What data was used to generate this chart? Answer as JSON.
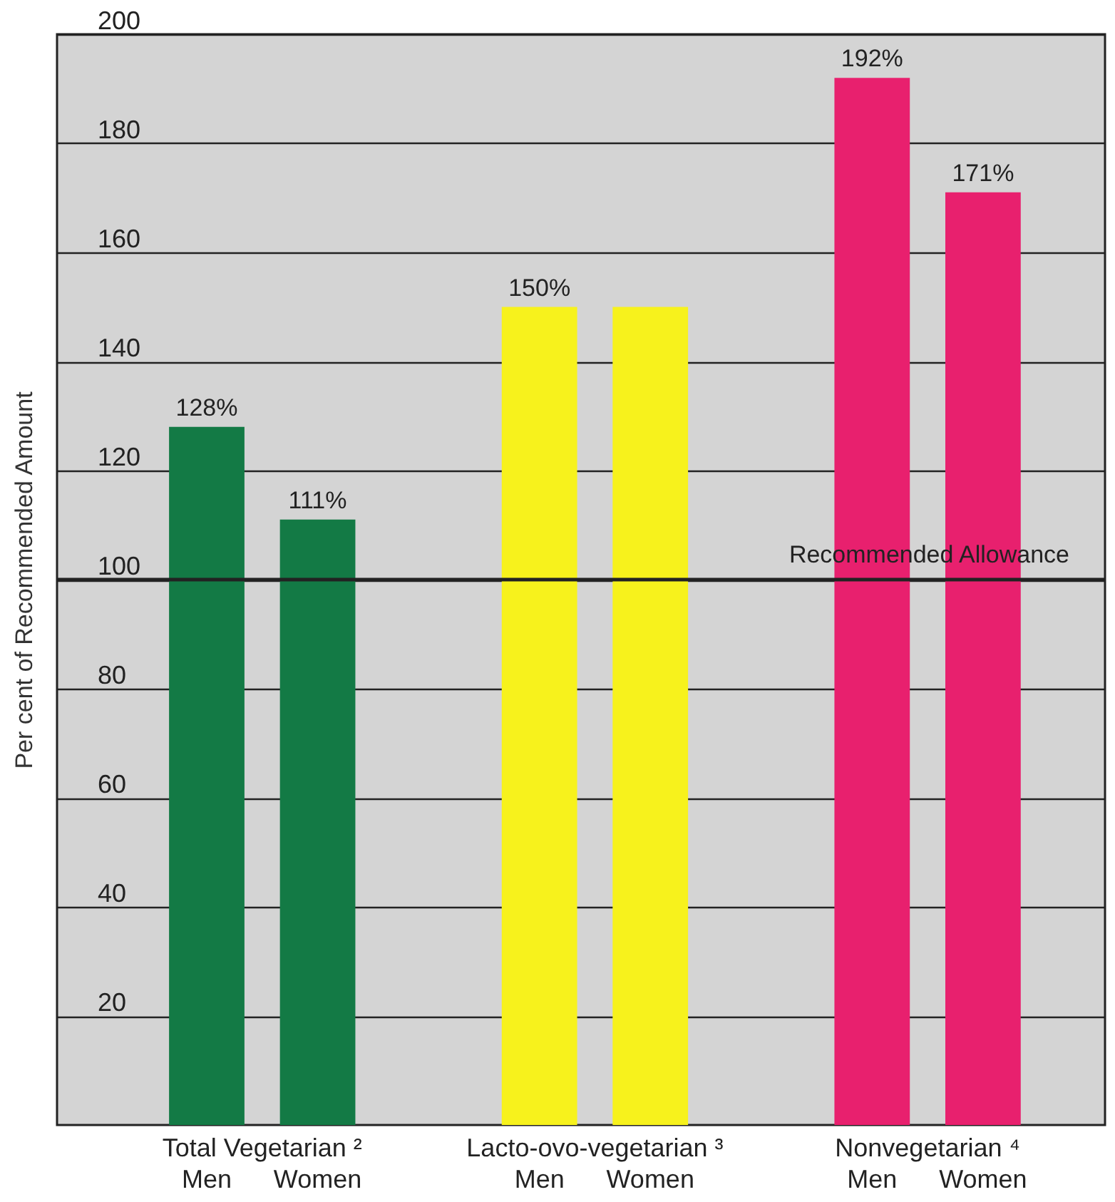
{
  "chart_data": {
    "type": "bar",
    "ylabel": "Per cent of Recommended Amount",
    "categories": [
      "Men",
      "Women",
      "Men",
      "Women",
      "Men",
      "Women"
    ],
    "values": [
      128,
      111,
      150,
      150,
      192,
      171
    ],
    "colors": [
      "#137a45",
      "#137a45",
      "#f7f21c",
      "#f7f21c",
      "#e8206e",
      "#e8206e"
    ],
    "value_labels": [
      "128%",
      "111%",
      "150%",
      null,
      "192%",
      "171%"
    ],
    "ylim": [
      0,
      200
    ],
    "yticks": [
      20,
      40,
      60,
      80,
      100,
      120,
      140,
      160,
      180,
      200
    ],
    "grid": "y",
    "ref_lines": [
      {
        "axis": "y",
        "value": 100,
        "label": "Recommended Allowance"
      }
    ],
    "annotations": [
      "Total  Vegetarian ²",
      "Lacto-ovo-vegetarian ³",
      "Nonvegetarian ⁴"
    ]
  }
}
